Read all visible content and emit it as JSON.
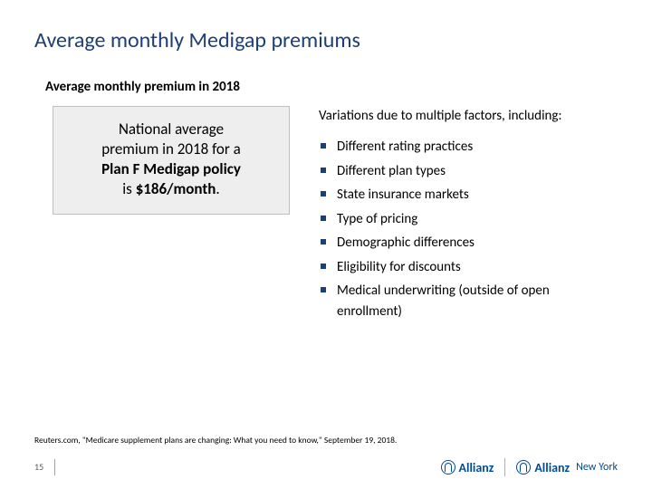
{
  "title": "Average monthly Medigap premiums",
  "subtitle": "Average monthly premium in 2018",
  "callout": {
    "line1": "National average",
    "line2": "premium in 2018 for a",
    "line3_prefix": "Plan F Medigap policy",
    "line4_prefix": "is ",
    "line4_bold": "$186/month",
    "line4_suffix": "."
  },
  "factors_heading": "Variations due to multiple factors, including:",
  "factors": [
    "Different rating practices",
    "Different plan types",
    "State insurance markets",
    "Type of pricing",
    "Demographic differences",
    "Eligibility for discounts",
    "Medical underwriting (outside of open enrollment)"
  ],
  "footnote": "Reuters.com, \"Medicare supplement plans are changing: What you need to know,\" September 19, 2018.",
  "page_number": "15",
  "logo1": "Allianz",
  "logo2": "Allianz",
  "logo2_sub": "New York",
  "colors": {
    "title_color": "#1c3f76",
    "bullet_color": "#1c3f76",
    "box_bg": "#eeeeee",
    "box_border": "#bfbfbf",
    "logo_color": "#004a93"
  }
}
